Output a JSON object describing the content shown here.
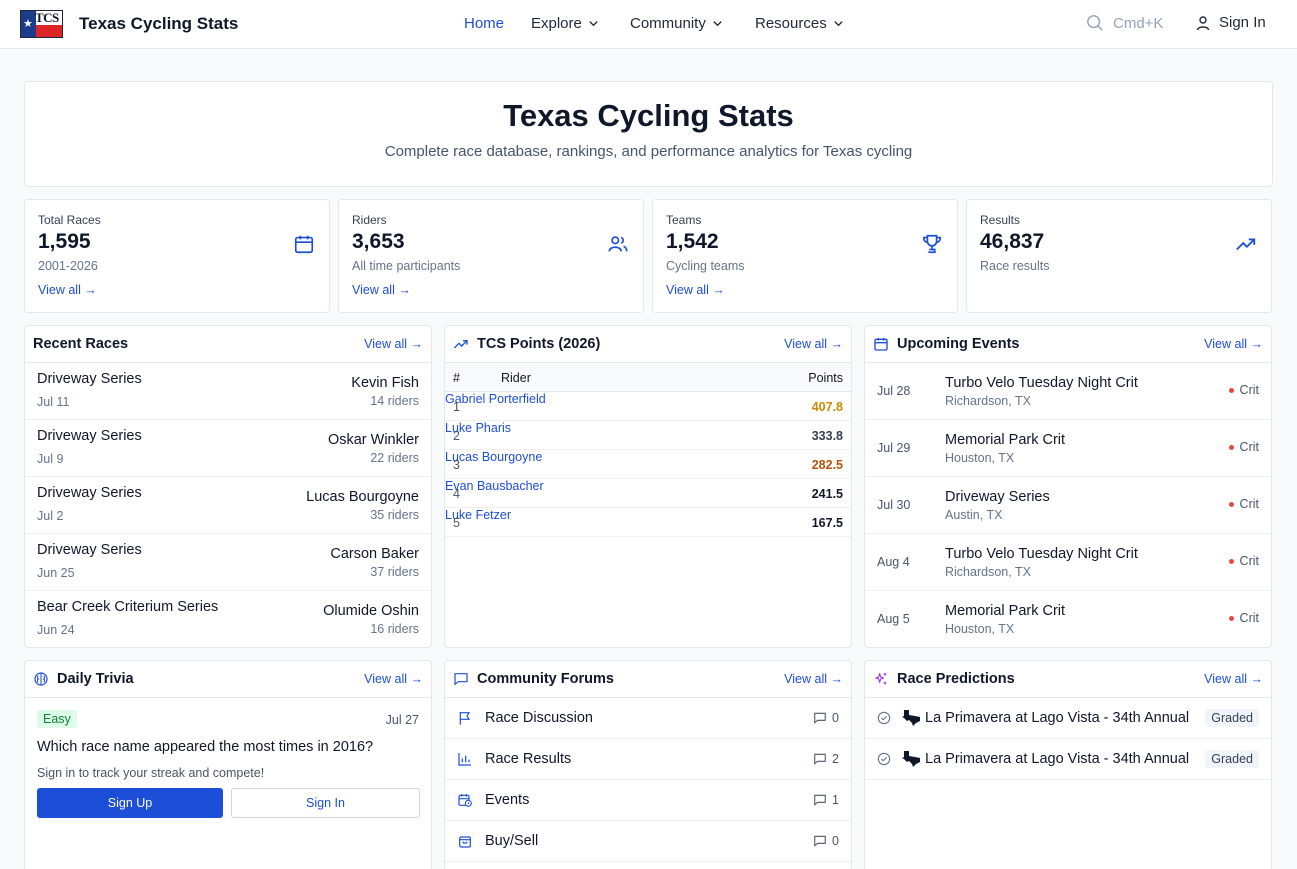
{
  "header": {
    "logo_text": "TCS",
    "brand": "Texas Cycling Stats",
    "nav": [
      {
        "label": "Home"
      },
      {
        "label": "Explore"
      },
      {
        "label": "Community"
      },
      {
        "label": "Resources"
      }
    ],
    "search_shortcut": "Cmd+K",
    "sign_in": "Sign In"
  },
  "hero": {
    "title": "Texas Cycling Stats",
    "subtitle": "Complete race database, rankings, and performance analytics for Texas cycling"
  },
  "stats": [
    {
      "label": "Total Races",
      "value": "1,595",
      "sub": "2001-2026",
      "link": "View all →",
      "icon": "calendar-icon"
    },
    {
      "label": "Riders",
      "value": "3,653",
      "sub": "All time participants",
      "link": "View all →",
      "icon": "users-icon"
    },
    {
      "label": "Teams",
      "value": "1,542",
      "sub": "Cycling teams",
      "link": "View all →",
      "icon": "trophy-icon"
    },
    {
      "label": "Results",
      "value": "46,837",
      "sub": "Race results",
      "icon": "trending-up-icon"
    }
  ],
  "recent_races": {
    "title": "Recent Races",
    "view_all": "View all →",
    "rows": [
      {
        "name": "Driveway Series",
        "date": "Jul 11",
        "winner": "Kevin Fish",
        "riders": "14 riders"
      },
      {
        "name": "Driveway Series",
        "date": "Jul 9",
        "winner": "Oskar Winkler",
        "riders": "22 riders"
      },
      {
        "name": "Driveway Series",
        "date": "Jul 2",
        "winner": "Lucas Bourgoyne",
        "riders": "35 riders"
      },
      {
        "name": "Driveway Series",
        "date": "Jun 25",
        "winner": "Carson Baker",
        "riders": "37 riders"
      },
      {
        "name": "Bear Creek Criterium Series",
        "date": "Jun 24",
        "winner": "Olumide Oshin",
        "riders": "16 riders"
      }
    ]
  },
  "points": {
    "title": "TCS Points (2026)",
    "view_all": "View all →",
    "columns": {
      "rank": "#",
      "rider": "Rider",
      "points": "Points"
    },
    "rows": [
      {
        "rank": "1",
        "rider": "Gabriel Porterfield",
        "points": "407.8",
        "color": "#ca8a04"
      },
      {
        "rank": "2",
        "rider": "Luke Pharis",
        "points": "333.8",
        "color": "#374151"
      },
      {
        "rank": "3",
        "rider": "Lucas Bourgoyne",
        "points": "282.5",
        "color": "#b45309"
      },
      {
        "rank": "4",
        "rider": "Evan Bausbacher",
        "points": "241.5",
        "color": "#0f172a"
      },
      {
        "rank": "5",
        "rider": "Luke Fetzer",
        "points": "167.5",
        "color": "#0f172a"
      }
    ]
  },
  "upcoming": {
    "title": "Upcoming Events",
    "view_all": "View all →",
    "rows": [
      {
        "date": "Jul 28",
        "name": "Turbo Velo Tuesday Night Crit",
        "location": "Richardson, TX",
        "type": "Crit"
      },
      {
        "date": "Jul 29",
        "name": "Memorial Park Crit",
        "location": "Houston, TX",
        "type": "Crit"
      },
      {
        "date": "Jul 30",
        "name": "Driveway Series",
        "location": "Austin, TX",
        "type": "Crit"
      },
      {
        "date": "Aug 4",
        "name": "Turbo Velo Tuesday Night Crit",
        "location": "Richardson, TX",
        "type": "Crit"
      },
      {
        "date": "Aug 5",
        "name": "Memorial Park Crit",
        "location": "Houston, TX",
        "type": "Crit"
      }
    ]
  },
  "trivia": {
    "title": "Daily Trivia",
    "view_all": "View all →",
    "difficulty": "Easy",
    "date": "Jul 27",
    "question": "Which race name appeared the most times in 2016?",
    "hint": "Sign in to track your streak and compete!",
    "sign_up": "Sign Up",
    "sign_in": "Sign In"
  },
  "forums": {
    "title": "Community Forums",
    "view_all": "View all →",
    "rows": [
      {
        "name": "Race Discussion",
        "count": "0",
        "icon": "flag-icon"
      },
      {
        "name": "Race Results",
        "count": "2",
        "icon": "bar-chart-icon"
      },
      {
        "name": "Events",
        "count": "1",
        "icon": "calendar-clock-icon"
      },
      {
        "name": "Buy/Sell",
        "count": "0",
        "icon": "shopping-bag-icon"
      }
    ]
  },
  "predictions": {
    "title": "Race Predictions",
    "view_all": "View all →",
    "rows": [
      {
        "name": "La Primavera at Lago Vista - 34th Annual",
        "status": "Graded"
      },
      {
        "name": "La Primavera at Lago Vista - 34th Annual",
        "status": "Graded"
      }
    ]
  }
}
